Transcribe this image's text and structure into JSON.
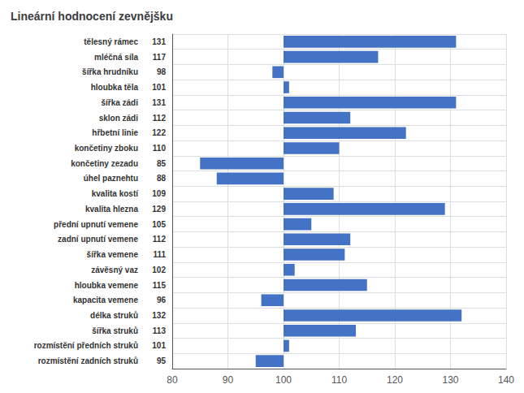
{
  "chart_data": {
    "type": "bar",
    "orientation": "horizontal",
    "title": "Lineární hodnocení zevnějšku",
    "categories": [
      "tělesný rámec",
      "mléčná síla",
      "šířka hrudníku",
      "hloubka těla",
      "šířka zádi",
      "sklon zádi",
      "hřbetní linie",
      "končetiny zboku",
      "končetiny zezadu",
      "úhel paznehtu",
      "kvalita kostí",
      "kvalita hlezna",
      "přední upnutí vemene",
      "zadní upnutí vemene",
      "šířka vemene",
      "závěsný vaz",
      "hloubka vemene",
      "kapacita vemene",
      "délka struků",
      "šířka struků",
      "rozmístění předních struků",
      "rozmístění zadních struků"
    ],
    "values": [
      131,
      117,
      98,
      101,
      131,
      112,
      122,
      110,
      85,
      88,
      109,
      129,
      105,
      112,
      111,
      102,
      115,
      96,
      132,
      113,
      101,
      95
    ],
    "base": 100,
    "color": "#4472C4",
    "xlim": [
      80,
      140
    ],
    "xticks": [
      80,
      90,
      100,
      110,
      120,
      130,
      140
    ],
    "grid": true,
    "data_labels": true
  }
}
